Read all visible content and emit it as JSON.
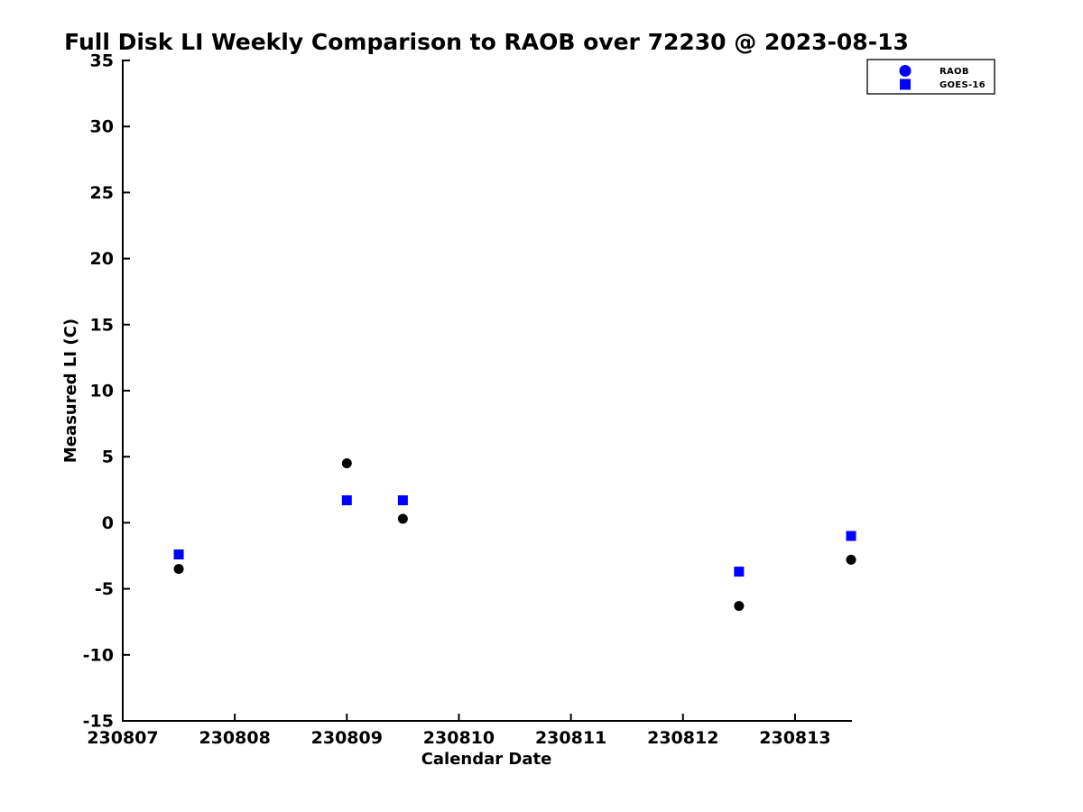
{
  "page": {
    "background": "#ffffff",
    "text_color": "#000000"
  },
  "chart_data": {
    "type": "scatter",
    "title": "Full Disk LI Weekly Comparison to RAOB over 72230 @ 2023-08-13",
    "xlabel": "Calendar Date",
    "ylabel": "Measured LI (C)",
    "xlim": [
      230807,
      230813.5
    ],
    "ylim": [
      -15,
      35
    ],
    "xticks": [
      230807,
      230808,
      230809,
      230810,
      230811,
      230812,
      230813
    ],
    "yticks": [
      -15,
      -10,
      -5,
      0,
      5,
      10,
      15,
      20,
      25,
      30,
      35
    ],
    "grid": false,
    "legend_position": "top-right",
    "series": [
      {
        "name": "RAOB",
        "marker": "circle",
        "color": "#000000",
        "legend_color": "#0000ff",
        "points": [
          {
            "x": 230807.5,
            "y": -3.5
          },
          {
            "x": 230809.0,
            "y": 4.5
          },
          {
            "x": 230809.5,
            "y": 0.3
          },
          {
            "x": 230812.5,
            "y": -6.3
          },
          {
            "x": 230813.5,
            "y": -2.8
          }
        ]
      },
      {
        "name": "GOES-16",
        "marker": "square",
        "color": "#0000ff",
        "legend_color": "#0000ff",
        "points": [
          {
            "x": 230807.5,
            "y": -2.4
          },
          {
            "x": 230809.0,
            "y": 1.7
          },
          {
            "x": 230809.5,
            "y": 1.7
          },
          {
            "x": 230812.5,
            "y": -3.7
          },
          {
            "x": 230813.5,
            "y": -1.0
          }
        ]
      }
    ]
  }
}
